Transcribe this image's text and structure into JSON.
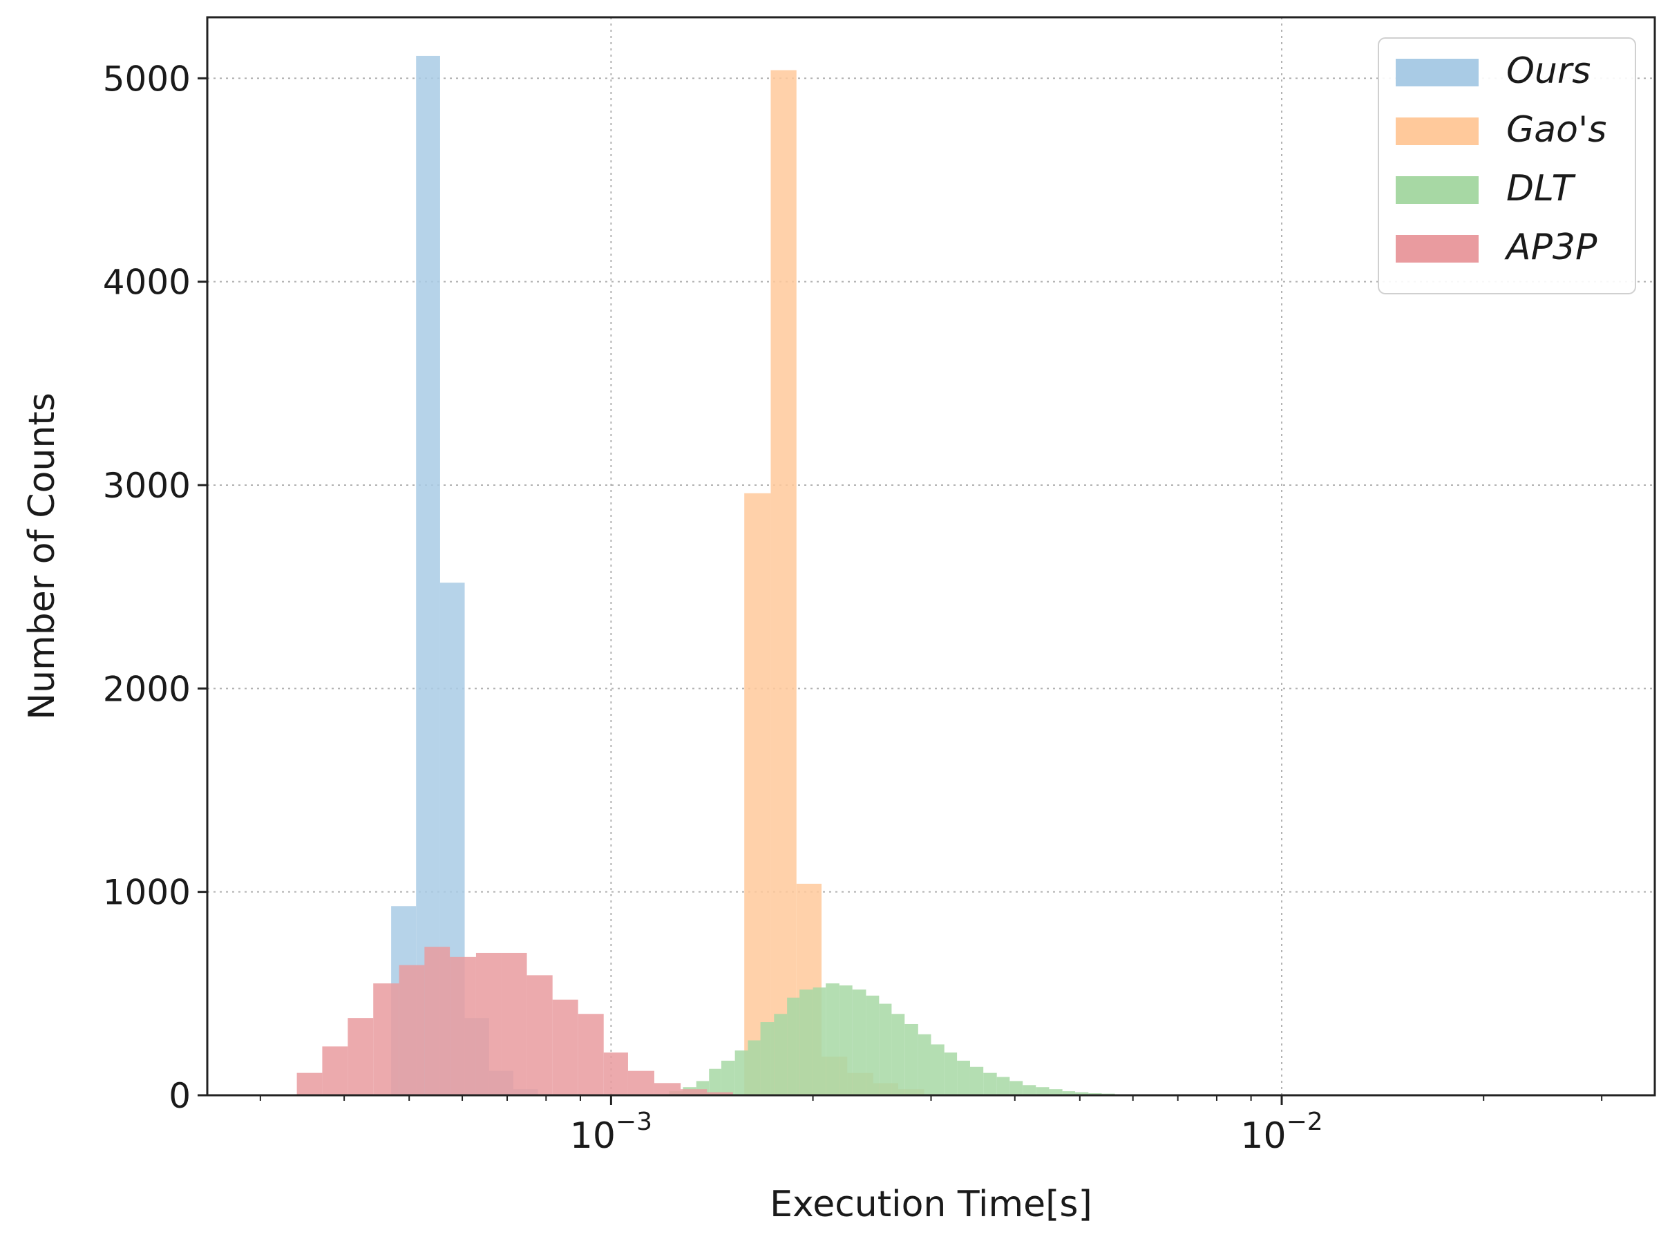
{
  "chart_data": {
    "type": "bar",
    "subtype": "overlapping-histogram",
    "title": "",
    "xlabel": "Execution Time[s]",
    "ylabel": "Number of Counts",
    "xscale": "log",
    "xlim": [
      0.00025,
      0.036
    ],
    "ylim": [
      0,
      5300
    ],
    "grid": true,
    "legend_position": "top-right",
    "y_ticks": [
      0,
      1000,
      2000,
      3000,
      4000,
      5000
    ],
    "x_ticks": [
      {
        "value": 0.001,
        "base": "10",
        "exp": "−3"
      },
      {
        "value": 0.01,
        "base": "10",
        "exp": "−2"
      }
    ],
    "series": [
      {
        "name": "Ours",
        "color": "#a9cbe5",
        "bins": [
          {
            "x0": 0.00047,
            "x1": 0.000512,
            "count": 930
          },
          {
            "x0": 0.000512,
            "x1": 0.000556,
            "count": 5110
          },
          {
            "x0": 0.000556,
            "x1": 0.000605,
            "count": 2520
          },
          {
            "x0": 0.000605,
            "x1": 0.000658,
            "count": 380
          },
          {
            "x0": 0.000658,
            "x1": 0.000715,
            "count": 120
          },
          {
            "x0": 0.000715,
            "x1": 0.000778,
            "count": 30
          }
        ]
      },
      {
        "name": "Gao's",
        "color": "#ffc99b",
        "bins": [
          {
            "x0": 0.00158,
            "x1": 0.00173,
            "count": 2960
          },
          {
            "x0": 0.00173,
            "x1": 0.00189,
            "count": 5040
          },
          {
            "x0": 0.00189,
            "x1": 0.00206,
            "count": 1040
          },
          {
            "x0": 0.00206,
            "x1": 0.00225,
            "count": 190
          },
          {
            "x0": 0.00225,
            "x1": 0.00246,
            "count": 110
          },
          {
            "x0": 0.00246,
            "x1": 0.00268,
            "count": 60
          },
          {
            "x0": 0.00268,
            "x1": 0.00293,
            "count": 30
          }
        ]
      },
      {
        "name": "DLT",
        "color": "#a7d8a4",
        "bins": [
          {
            "x0": 0.00122,
            "x1": 0.00128,
            "count": 20
          },
          {
            "x0": 0.00128,
            "x1": 0.00134,
            "count": 40
          },
          {
            "x0": 0.00134,
            "x1": 0.0014,
            "count": 70
          },
          {
            "x0": 0.0014,
            "x1": 0.00146,
            "count": 130
          },
          {
            "x0": 0.00146,
            "x1": 0.00153,
            "count": 170
          },
          {
            "x0": 0.00153,
            "x1": 0.0016,
            "count": 220
          },
          {
            "x0": 0.0016,
            "x1": 0.00167,
            "count": 270
          },
          {
            "x0": 0.00167,
            "x1": 0.00175,
            "count": 360
          },
          {
            "x0": 0.00175,
            "x1": 0.00183,
            "count": 400
          },
          {
            "x0": 0.00183,
            "x1": 0.00191,
            "count": 480
          },
          {
            "x0": 0.00191,
            "x1": 0.002,
            "count": 520
          },
          {
            "x0": 0.002,
            "x1": 0.00209,
            "count": 530
          },
          {
            "x0": 0.00209,
            "x1": 0.00219,
            "count": 550
          },
          {
            "x0": 0.00219,
            "x1": 0.00229,
            "count": 540
          },
          {
            "x0": 0.00229,
            "x1": 0.0024,
            "count": 520
          },
          {
            "x0": 0.0024,
            "x1": 0.00251,
            "count": 490
          },
          {
            "x0": 0.00251,
            "x1": 0.00262,
            "count": 450
          },
          {
            "x0": 0.00262,
            "x1": 0.00274,
            "count": 400
          },
          {
            "x0": 0.00274,
            "x1": 0.00287,
            "count": 350
          },
          {
            "x0": 0.00287,
            "x1": 0.003,
            "count": 300
          },
          {
            "x0": 0.003,
            "x1": 0.00314,
            "count": 250
          },
          {
            "x0": 0.00314,
            "x1": 0.00328,
            "count": 210
          },
          {
            "x0": 0.00328,
            "x1": 0.00343,
            "count": 170
          },
          {
            "x0": 0.00343,
            "x1": 0.00359,
            "count": 140
          },
          {
            "x0": 0.00359,
            "x1": 0.00376,
            "count": 110
          },
          {
            "x0": 0.00376,
            "x1": 0.00393,
            "count": 90
          },
          {
            "x0": 0.00393,
            "x1": 0.00411,
            "count": 70
          },
          {
            "x0": 0.00411,
            "x1": 0.0043,
            "count": 50
          },
          {
            "x0": 0.0043,
            "x1": 0.0045,
            "count": 40
          },
          {
            "x0": 0.0045,
            "x1": 0.00471,
            "count": 30
          },
          {
            "x0": 0.00471,
            "x1": 0.00492,
            "count": 20
          },
          {
            "x0": 0.00492,
            "x1": 0.00515,
            "count": 15
          },
          {
            "x0": 0.00515,
            "x1": 0.00539,
            "count": 10
          },
          {
            "x0": 0.00539,
            "x1": 0.00564,
            "count": 8
          },
          {
            "x0": 0.00564,
            "x1": 0.0059,
            "count": 5
          }
        ]
      },
      {
        "name": "AP3P",
        "color": "#e99b9f",
        "bins": [
          {
            "x0": 0.00034,
            "x1": 0.000371,
            "count": 110
          },
          {
            "x0": 0.000371,
            "x1": 0.000405,
            "count": 240
          },
          {
            "x0": 0.000405,
            "x1": 0.000442,
            "count": 380
          },
          {
            "x0": 0.000442,
            "x1": 0.000483,
            "count": 550
          },
          {
            "x0": 0.000483,
            "x1": 0.000527,
            "count": 640
          },
          {
            "x0": 0.000527,
            "x1": 0.000575,
            "count": 730
          },
          {
            "x0": 0.000575,
            "x1": 0.000629,
            "count": 680
          },
          {
            "x0": 0.000629,
            "x1": 0.000686,
            "count": 700
          },
          {
            "x0": 0.000686,
            "x1": 0.000749,
            "count": 700
          },
          {
            "x0": 0.000749,
            "x1": 0.000818,
            "count": 590
          },
          {
            "x0": 0.000818,
            "x1": 0.000893,
            "count": 470
          },
          {
            "x0": 0.000893,
            "x1": 0.000975,
            "count": 400
          },
          {
            "x0": 0.000975,
            "x1": 0.00106,
            "count": 210
          },
          {
            "x0": 0.00106,
            "x1": 0.00116,
            "count": 120
          },
          {
            "x0": 0.00116,
            "x1": 0.00127,
            "count": 60
          },
          {
            "x0": 0.00127,
            "x1": 0.00139,
            "count": 30
          },
          {
            "x0": 0.00139,
            "x1": 0.00152,
            "count": 15
          }
        ]
      }
    ]
  }
}
